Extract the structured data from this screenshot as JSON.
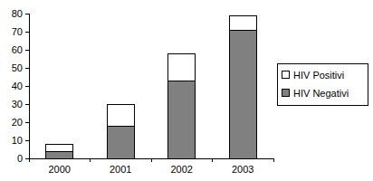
{
  "chart_data": {
    "type": "bar",
    "stacked": true,
    "categories": [
      "2000",
      "2001",
      "2002",
      "2003"
    ],
    "series": [
      {
        "name": "HIV Negativi",
        "color": "#808080",
        "values": [
          4,
          18,
          43,
          71
        ]
      },
      {
        "name": "HIV Positivi",
        "color": "#ffffff",
        "values": [
          4,
          12,
          15,
          8
        ]
      }
    ],
    "ylim": [
      0,
      80
    ],
    "yticks": [
      0,
      10,
      20,
      30,
      40,
      50,
      60,
      70,
      80
    ],
    "grid": false,
    "legend": "right"
  }
}
